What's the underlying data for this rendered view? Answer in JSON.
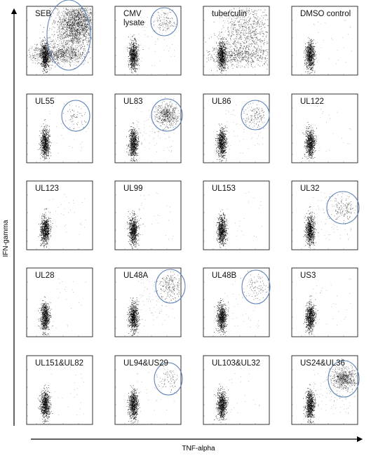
{
  "chart_data": {
    "type": "scatter",
    "xlabel": "TNF-alpha",
    "ylabel": "IFN-gamma",
    "grid": false,
    "panels": [
      {
        "label": "SEB",
        "gated": true,
        "level": 1.0
      },
      {
        "label": "CMV\nlysate",
        "gated": true,
        "level": 0.25
      },
      {
        "label": "tuberculin",
        "gated": false,
        "level": 0.9
      },
      {
        "label": "DMSO control",
        "gated": false,
        "level": 0.04
      },
      {
        "label": "UL55",
        "gated": true,
        "level": 0.08
      },
      {
        "label": "UL83",
        "gated": true,
        "level": 0.5
      },
      {
        "label": "UL86",
        "gated": true,
        "level": 0.3
      },
      {
        "label": "UL122",
        "gated": false,
        "level": 0.05
      },
      {
        "label": "UL123",
        "gated": false,
        "level": 0.08
      },
      {
        "label": "UL99",
        "gated": false,
        "level": 0.05
      },
      {
        "label": "UL153",
        "gated": false,
        "level": 0.03
      },
      {
        "label": "UL32",
        "gated": true,
        "level": 0.35
      },
      {
        "label": "UL28",
        "gated": false,
        "level": 0.03
      },
      {
        "label": "UL48A",
        "gated": true,
        "level": 0.55
      },
      {
        "label": "UL48B",
        "gated": true,
        "level": 0.15
      },
      {
        "label": "US3",
        "gated": false,
        "level": 0.06
      },
      {
        "label": "UL151&UL82",
        "gated": false,
        "level": 0.03
      },
      {
        "label": "UL94&US29",
        "gated": true,
        "level": 0.1
      },
      {
        "label": "UL103&UL32",
        "gated": false,
        "level": 0.04
      },
      {
        "label": "US24&UL36",
        "gated": true,
        "level": 0.6
      }
    ]
  },
  "colors": {
    "gate": "#5b83b8",
    "dots": "#000000",
    "frame": "#000000"
  }
}
